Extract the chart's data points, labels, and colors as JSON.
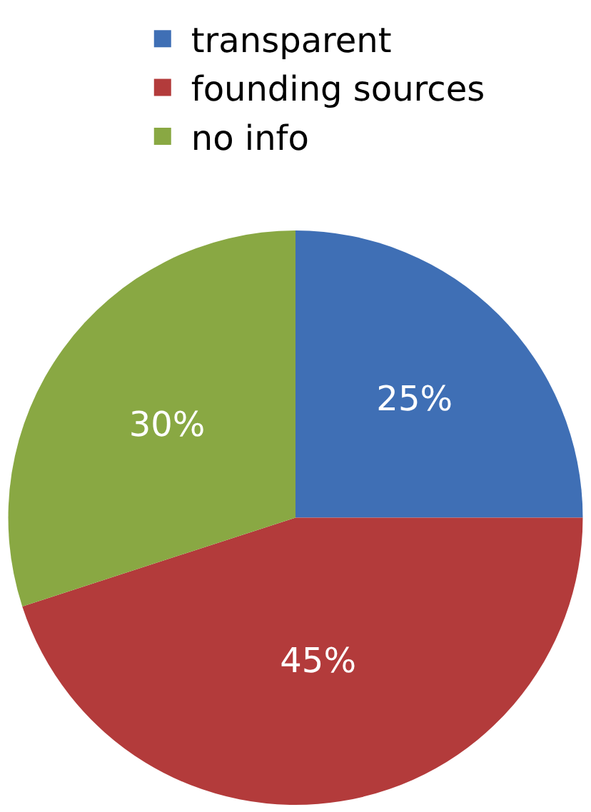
{
  "chart_data": {
    "type": "pie",
    "categories": [
      "transparent",
      "founding sources",
      "no info"
    ],
    "values": [
      25,
      45,
      30
    ],
    "colors": [
      "#3f6fb5",
      "#b33b3b",
      "#89a843"
    ],
    "value_labels": [
      "25%",
      "45%",
      "30%"
    ],
    "legend": "top"
  }
}
